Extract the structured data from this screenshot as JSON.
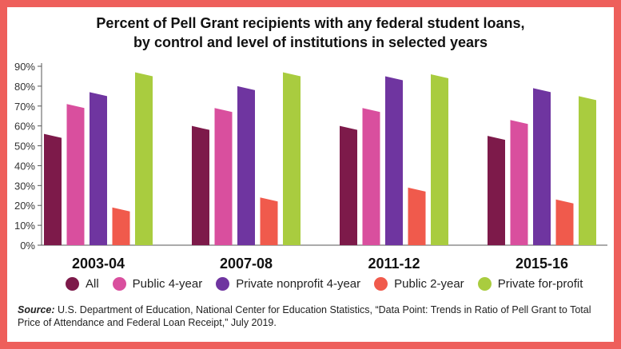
{
  "colors": {
    "border": "#ee5f5b",
    "series": [
      "#7d1a4a",
      "#d94f9e",
      "#6f35a0",
      "#f05a4c",
      "#a9cc3f"
    ]
  },
  "chart_data": {
    "type": "bar",
    "title": "Percent of Pell Grant recipients with any federal student loans, by control and level of institutions in selected years",
    "title_line1": "Percent of Pell Grant recipients with any federal student loans,",
    "title_line2": "by control and level of institutions in selected years",
    "categories": [
      "2003-04",
      "2007-08",
      "2011-12",
      "2015-16"
    ],
    "series": [
      {
        "name": "All",
        "values": [
          56,
          60,
          60,
          55
        ]
      },
      {
        "name": "Public 4-year",
        "values": [
          71,
          69,
          69,
          63
        ]
      },
      {
        "name": "Private nonprofit 4-year",
        "values": [
          77,
          80,
          85,
          79
        ]
      },
      {
        "name": "Public 2-year",
        "values": [
          19,
          24,
          29,
          23
        ]
      },
      {
        "name": "Private for-profit",
        "values": [
          87,
          87,
          86,
          75
        ]
      }
    ],
    "ylim": [
      0,
      90
    ],
    "yticks": [
      "0%",
      "10%",
      "20%",
      "30%",
      "40%",
      "50%",
      "60%",
      "70%",
      "80%",
      "90%"
    ],
    "grid": false,
    "legend_position": "bottom"
  },
  "source": {
    "label": "Source:",
    "text": " U.S. Department of Education, National Center for Education Statistics, “Data Point: Trends in Ratio of Pell Grant to Total Price of Attendance and Federal Loan Receipt,” July 2019."
  }
}
